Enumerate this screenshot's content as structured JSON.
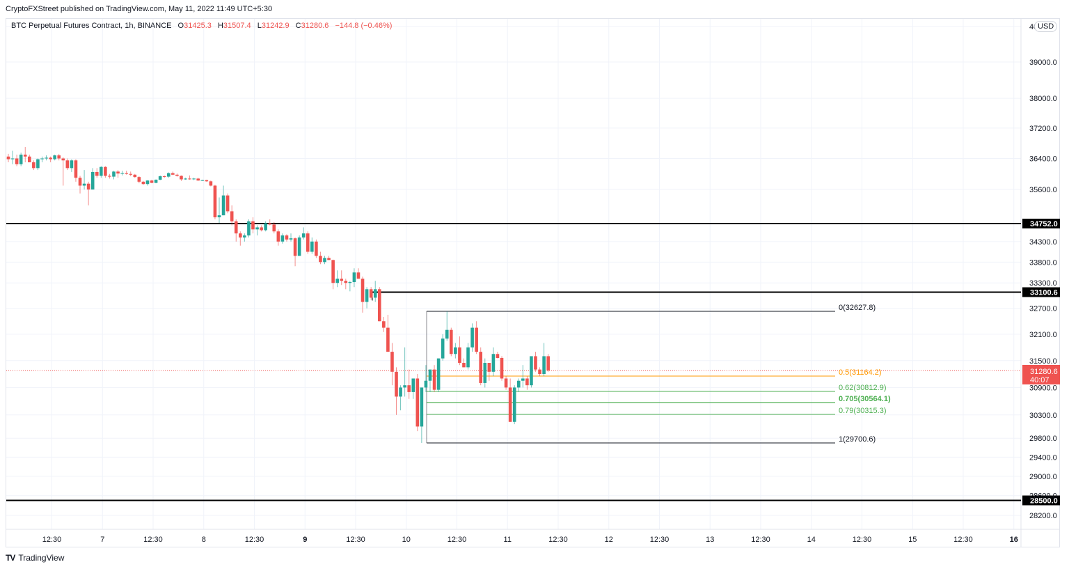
{
  "header": {
    "publish_line": "CryptoFXStreet published on TradingView.com, May 11, 2022 11:49 UTC+5:30"
  },
  "legend": {
    "symbol": "BTC Perpetual Futures Contract, 1h, BINANCE",
    "open_label": "O",
    "open": "31425.3",
    "high_label": "H",
    "high": "31507.4",
    "low_label": "L",
    "low": "31242.9",
    "close_label": "C",
    "close": "31280.6",
    "change": "−144.8 (−0.46%)"
  },
  "currency_badge": "USD",
  "footer": {
    "logo_glyph": "TV",
    "brand": "TradingView"
  },
  "colors": {
    "up": "#26a69a",
    "down": "#ef5350",
    "fib_half": "#ff9800",
    "fib_green": "#4caf50",
    "level": "#000000",
    "grid": "#f0f3fa"
  },
  "chart_data": {
    "type": "candlestick",
    "title": "BTC Perpetual Futures Contract, 1h, BINANCE",
    "xlabel": "",
    "ylabel": "USD",
    "y_scale": "log",
    "ylim": [
      28000,
      40000
    ],
    "x_ticks": [
      "12:30",
      "7",
      "12:30",
      "8",
      "12:30",
      "9",
      "12:30",
      "10",
      "12:30",
      "11",
      "12:30",
      "12",
      "12:30",
      "13",
      "12:30",
      "14",
      "12:30",
      "15",
      "12:30",
      "16"
    ],
    "y_ticks": [
      "40000.0",
      "39000.0",
      "38000.0",
      "37200.0",
      "36400.0",
      "35600.0",
      "34300.0",
      "33800.0",
      "33300.0",
      "32700.0",
      "32100.0",
      "31500.0",
      "30900.0",
      "30300.0",
      "29800.0",
      "29400.0",
      "29000.0",
      "28600.0",
      "28200.0"
    ],
    "horizontal_levels": [
      {
        "price": 34752.0,
        "label": "34752.0"
      },
      {
        "price": 33100.6,
        "label": "33100.6"
      },
      {
        "price": 28500.0,
        "label": "28500.0"
      }
    ],
    "last_price": {
      "value": "31280.6",
      "countdown": "40:07"
    },
    "fibonacci": [
      {
        "ratio": "0",
        "price": 32627.8,
        "label": "0(32627.8)",
        "color": "#131722"
      },
      {
        "ratio": "0.5",
        "price": 31164.2,
        "label": "0.5(31164.2)",
        "color": "#ff9800"
      },
      {
        "ratio": "0.62",
        "price": 30812.9,
        "label": "0.62(30812.9)",
        "color": "#4caf50"
      },
      {
        "ratio": "0.705",
        "price": 30564.1,
        "label": "0.705(30564.1)",
        "color": "#4caf50"
      },
      {
        "ratio": "0.79",
        "price": 30315.3,
        "label": "0.79(30315.3)",
        "color": "#4caf50"
      },
      {
        "ratio": "1",
        "price": 29700.6,
        "label": "1(29700.6)",
        "color": "#131722"
      }
    ],
    "candles_ohlc": [
      [
        36450,
        36520,
        36300,
        36380
      ],
      [
        36380,
        36600,
        36250,
        36400
      ],
      [
        36400,
        36500,
        36200,
        36250
      ],
      [
        36250,
        36550,
        36200,
        36500
      ],
      [
        36500,
        36700,
        36300,
        36450
      ],
      [
        36450,
        36500,
        36350,
        36300
      ],
      [
        36300,
        36350,
        36100,
        36150
      ],
      [
        36150,
        36400,
        36100,
        36380
      ],
      [
        36380,
        36450,
        36300,
        36400
      ],
      [
        36400,
        36480,
        36350,
        36420
      ],
      [
        36420,
        36450,
        36300,
        36380
      ],
      [
        36380,
        36500,
        36350,
        36480
      ],
      [
        36480,
        36520,
        36350,
        36400
      ],
      [
        36400,
        36430,
        35700,
        36350
      ],
      [
        36350,
        36400,
        36100,
        36150
      ],
      [
        36150,
        36380,
        36050,
        36350
      ],
      [
        36350,
        36380,
        35800,
        35900
      ],
      [
        35900,
        35950,
        35500,
        35700
      ],
      [
        35700,
        36100,
        35600,
        35750
      ],
      [
        35750,
        35800,
        35200,
        35600
      ],
      [
        35600,
        36150,
        35600,
        36050
      ],
      [
        36050,
        36150,
        35900,
        35950
      ],
      [
        35950,
        36200,
        35900,
        36180
      ],
      [
        36180,
        36200,
        35900,
        35950
      ],
      [
        35950,
        36000,
        35880,
        35930
      ],
      [
        35930,
        36080,
        35860,
        36060
      ],
      [
        36060,
        36100,
        35900,
        36010
      ],
      [
        36010,
        36080,
        35960,
        36020
      ],
      [
        36020,
        36080,
        35980,
        36000
      ],
      [
        36000,
        36060,
        35940,
        35980
      ],
      [
        35980,
        36000,
        35900,
        35920
      ],
      [
        35920,
        35940,
        35760,
        35800
      ],
      [
        35800,
        35820,
        35720,
        35740
      ],
      [
        35740,
        35840,
        35700,
        35830
      ],
      [
        35830,
        35850,
        35760,
        35770
      ],
      [
        35770,
        35860,
        35760,
        35850
      ],
      [
        35850,
        35960,
        35840,
        35940
      ],
      [
        35940,
        35960,
        35900,
        35930
      ],
      [
        35930,
        36040,
        35900,
        36020
      ],
      [
        36020,
        36060,
        35970,
        35980
      ],
      [
        35980,
        36010,
        35930,
        35950
      ],
      [
        35950,
        35960,
        35820,
        35860
      ],
      [
        35860,
        35900,
        35850,
        35880
      ],
      [
        35880,
        35960,
        35850,
        35870
      ],
      [
        35870,
        35900,
        35840,
        35880
      ],
      [
        35880,
        35900,
        35820,
        35830
      ],
      [
        35830,
        35850,
        35820,
        35840
      ],
      [
        35840,
        35850,
        35800,
        35810
      ],
      [
        35810,
        35830,
        35680,
        35700
      ],
      [
        35700,
        35720,
        34850,
        34900
      ],
      [
        34900,
        35400,
        34750,
        34950
      ],
      [
        34950,
        35700,
        34950,
        35450
      ],
      [
        35450,
        35500,
        35000,
        35050
      ],
      [
        35050,
        35200,
        34700,
        34800
      ],
      [
        34800,
        34850,
        34300,
        34500
      ],
      [
        34500,
        34550,
        34200,
        34400
      ],
      [
        34400,
        34500,
        34300,
        34450
      ],
      [
        34450,
        34850,
        34400,
        34800
      ],
      [
        34800,
        34900,
        34500,
        34600
      ],
      [
        34600,
        34700,
        34450,
        34650
      ],
      [
        34650,
        34700,
        34550,
        34580
      ],
      [
        34580,
        34800,
        34550,
        34750
      ],
      [
        34750,
        34850,
        34700,
        34720
      ],
      [
        34720,
        34780,
        34500,
        34550
      ],
      [
        34550,
        34600,
        34200,
        34300
      ],
      [
        34300,
        34500,
        34250,
        34450
      ],
      [
        34450,
        34480,
        34300,
        34350
      ],
      [
        34350,
        34500,
        34300,
        34380
      ],
      [
        34380,
        34400,
        33700,
        33950
      ],
      [
        33950,
        34450,
        33950,
        34400
      ],
      [
        34400,
        34650,
        34350,
        34500
      ],
      [
        34500,
        34550,
        34000,
        34050
      ],
      [
        34050,
        34400,
        34000,
        34300
      ],
      [
        34300,
        34350,
        33900,
        33950
      ],
      [
        33950,
        34050,
        33750,
        33800
      ],
      [
        33800,
        33950,
        33750,
        33900
      ],
      [
        33900,
        33950,
        33850,
        33850
      ],
      [
        33850,
        33860,
        33150,
        33300
      ],
      [
        33300,
        33600,
        33200,
        33400
      ],
      [
        33400,
        33600,
        33250,
        33350
      ],
      [
        33350,
        33400,
        33150,
        33300
      ],
      [
        33300,
        33350,
        33100,
        33320
      ],
      [
        33320,
        33650,
        33200,
        33550
      ],
      [
        33550,
        33650,
        33400,
        33400
      ],
      [
        33400,
        33450,
        32600,
        32850
      ],
      [
        32850,
        33200,
        32700,
        33150
      ],
      [
        33150,
        33200,
        32900,
        32950
      ],
      [
        32950,
        33350,
        32850,
        33150
      ],
      [
        33150,
        33200,
        32400,
        32400
      ],
      [
        32400,
        32500,
        32150,
        32250
      ],
      [
        32250,
        32550,
        31700,
        31700
      ],
      [
        31700,
        31900,
        30950,
        31250
      ],
      [
        31250,
        31350,
        30300,
        30700
      ],
      [
        30700,
        30950,
        30400,
        30900
      ],
      [
        30900,
        31800,
        30700,
        30950
      ],
      [
        30950,
        31300,
        30650,
        30800
      ],
      [
        30800,
        31100,
        30650,
        31100
      ],
      [
        31100,
        31200,
        29950,
        30050
      ],
      [
        30050,
        30900,
        29700,
        30900
      ],
      [
        30900,
        31400,
        30800,
        31050
      ],
      [
        31050,
        31300,
        30800,
        31300
      ],
      [
        31300,
        31400,
        30800,
        30850
      ],
      [
        30850,
        31550,
        30800,
        31550
      ],
      [
        31550,
        32100,
        31500,
        32000
      ],
      [
        32000,
        32627,
        31950,
        32200
      ],
      [
        32200,
        32250,
        31600,
        31650
      ],
      [
        31650,
        31900,
        31550,
        31800
      ],
      [
        31800,
        32050,
        31400,
        31450
      ],
      [
        31450,
        31550,
        31350,
        31350
      ],
      [
        31350,
        31900,
        31300,
        31800
      ],
      [
        31800,
        32350,
        31700,
        32250
      ],
      [
        32250,
        32400,
        31650,
        31700
      ],
      [
        31700,
        31800,
        30950,
        31000
      ],
      [
        31000,
        31550,
        30900,
        31450
      ],
      [
        31450,
        31450,
        31050,
        31250
      ],
      [
        31250,
        31800,
        31150,
        31650
      ],
      [
        31650,
        31700,
        31550,
        31560
      ],
      [
        31560,
        31600,
        31050,
        31100
      ],
      [
        31100,
        31150,
        30850,
        30900
      ],
      [
        30900,
        31100,
        30150,
        30150
      ],
      [
        30150,
        30950,
        30100,
        30900
      ],
      [
        30900,
        31100,
        30800,
        31050
      ],
      [
        31050,
        31400,
        30900,
        31100
      ],
      [
        31100,
        31150,
        30850,
        30950
      ],
      [
        30950,
        31550,
        30900,
        31600
      ],
      [
        31600,
        31700,
        31250,
        31300
      ],
      [
        31300,
        31350,
        31150,
        31200
      ],
      [
        31200,
        31900,
        31150,
        31600
      ],
      [
        31600,
        31650,
        31250,
        31280
      ]
    ]
  }
}
